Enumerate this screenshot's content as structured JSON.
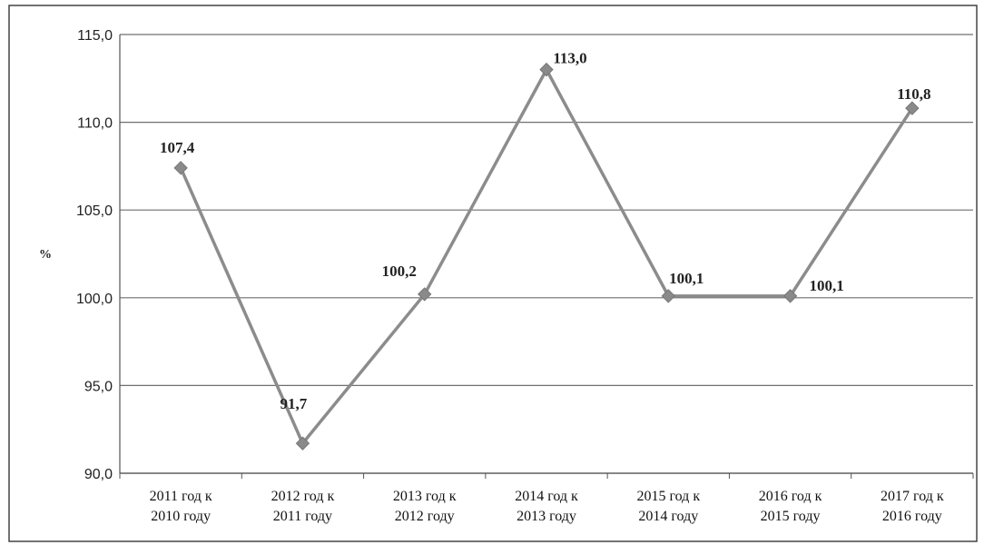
{
  "chart_data": {
    "type": "line",
    "title": "",
    "xlabel": "",
    "ylabel": "%",
    "ylim": [
      90.0,
      115.0
    ],
    "yticks": [
      "90,0",
      "95,0",
      "100,0",
      "105,0",
      "110,0",
      "115,0"
    ],
    "ytick_values": [
      90,
      95,
      100,
      105,
      110,
      115
    ],
    "grid": true,
    "legend": "none",
    "categories": [
      [
        "2011 год к",
        "2010 году"
      ],
      [
        "2012 год к",
        "2011 году"
      ],
      [
        "2013 год к",
        "2012 году"
      ],
      [
        "2014 год к",
        "2013 году"
      ],
      [
        "2015 год к",
        "2014 году"
      ],
      [
        "2016 год к",
        "2015 году"
      ],
      [
        "2017 год к",
        "2016 году"
      ]
    ],
    "series": [
      {
        "values": [
          107.4,
          91.7,
          100.2,
          113.0,
          100.1,
          100.1,
          110.8
        ],
        "labels": [
          "107,4",
          "91,7",
          "100,2",
          "113,0",
          "100,1",
          "100,1",
          "110,8"
        ],
        "color": "#8c8c8c"
      }
    ]
  }
}
